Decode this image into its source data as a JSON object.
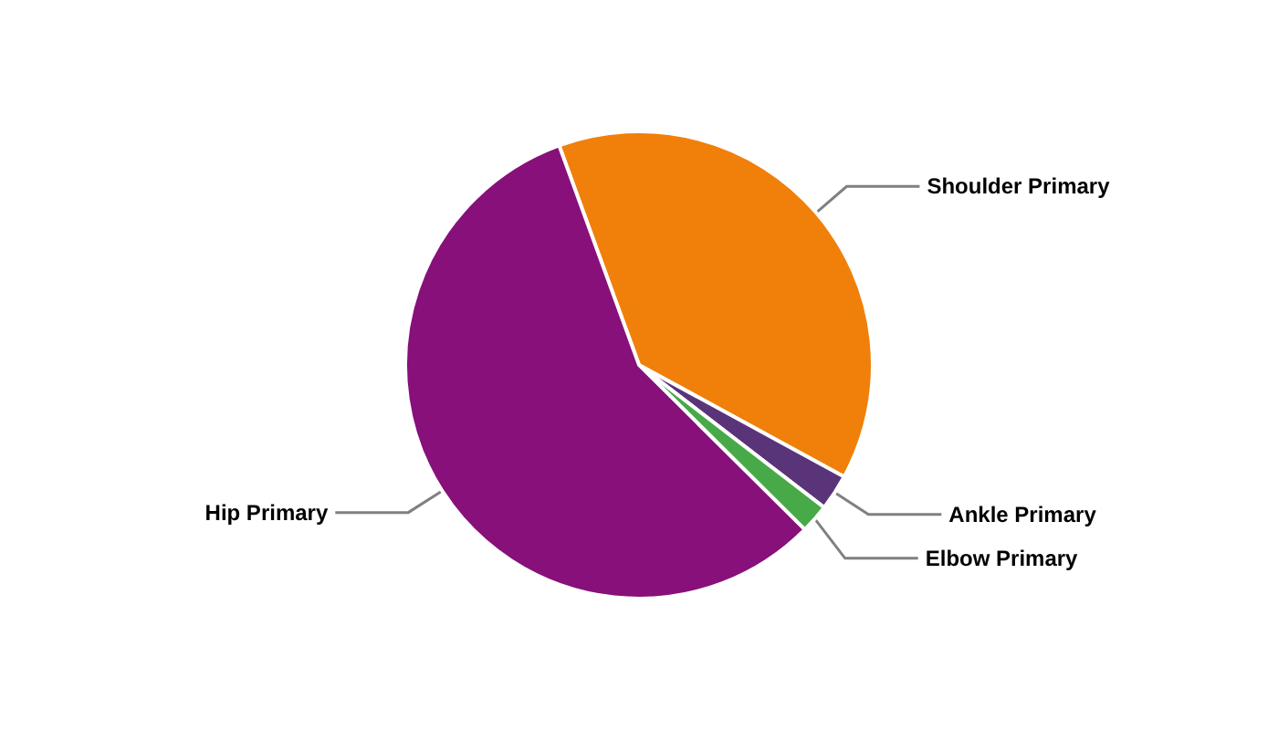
{
  "chart_data": {
    "type": "pie",
    "categories": [
      "Shoulder Primary",
      "Ankle Primary",
      "Elbow Primary",
      "Hip Primary"
    ],
    "values": [
      38.5,
      2.5,
      2,
      57
    ],
    "colors": [
      "#f0800a",
      "#5a3478",
      "#48a948",
      "#87107a"
    ]
  }
}
